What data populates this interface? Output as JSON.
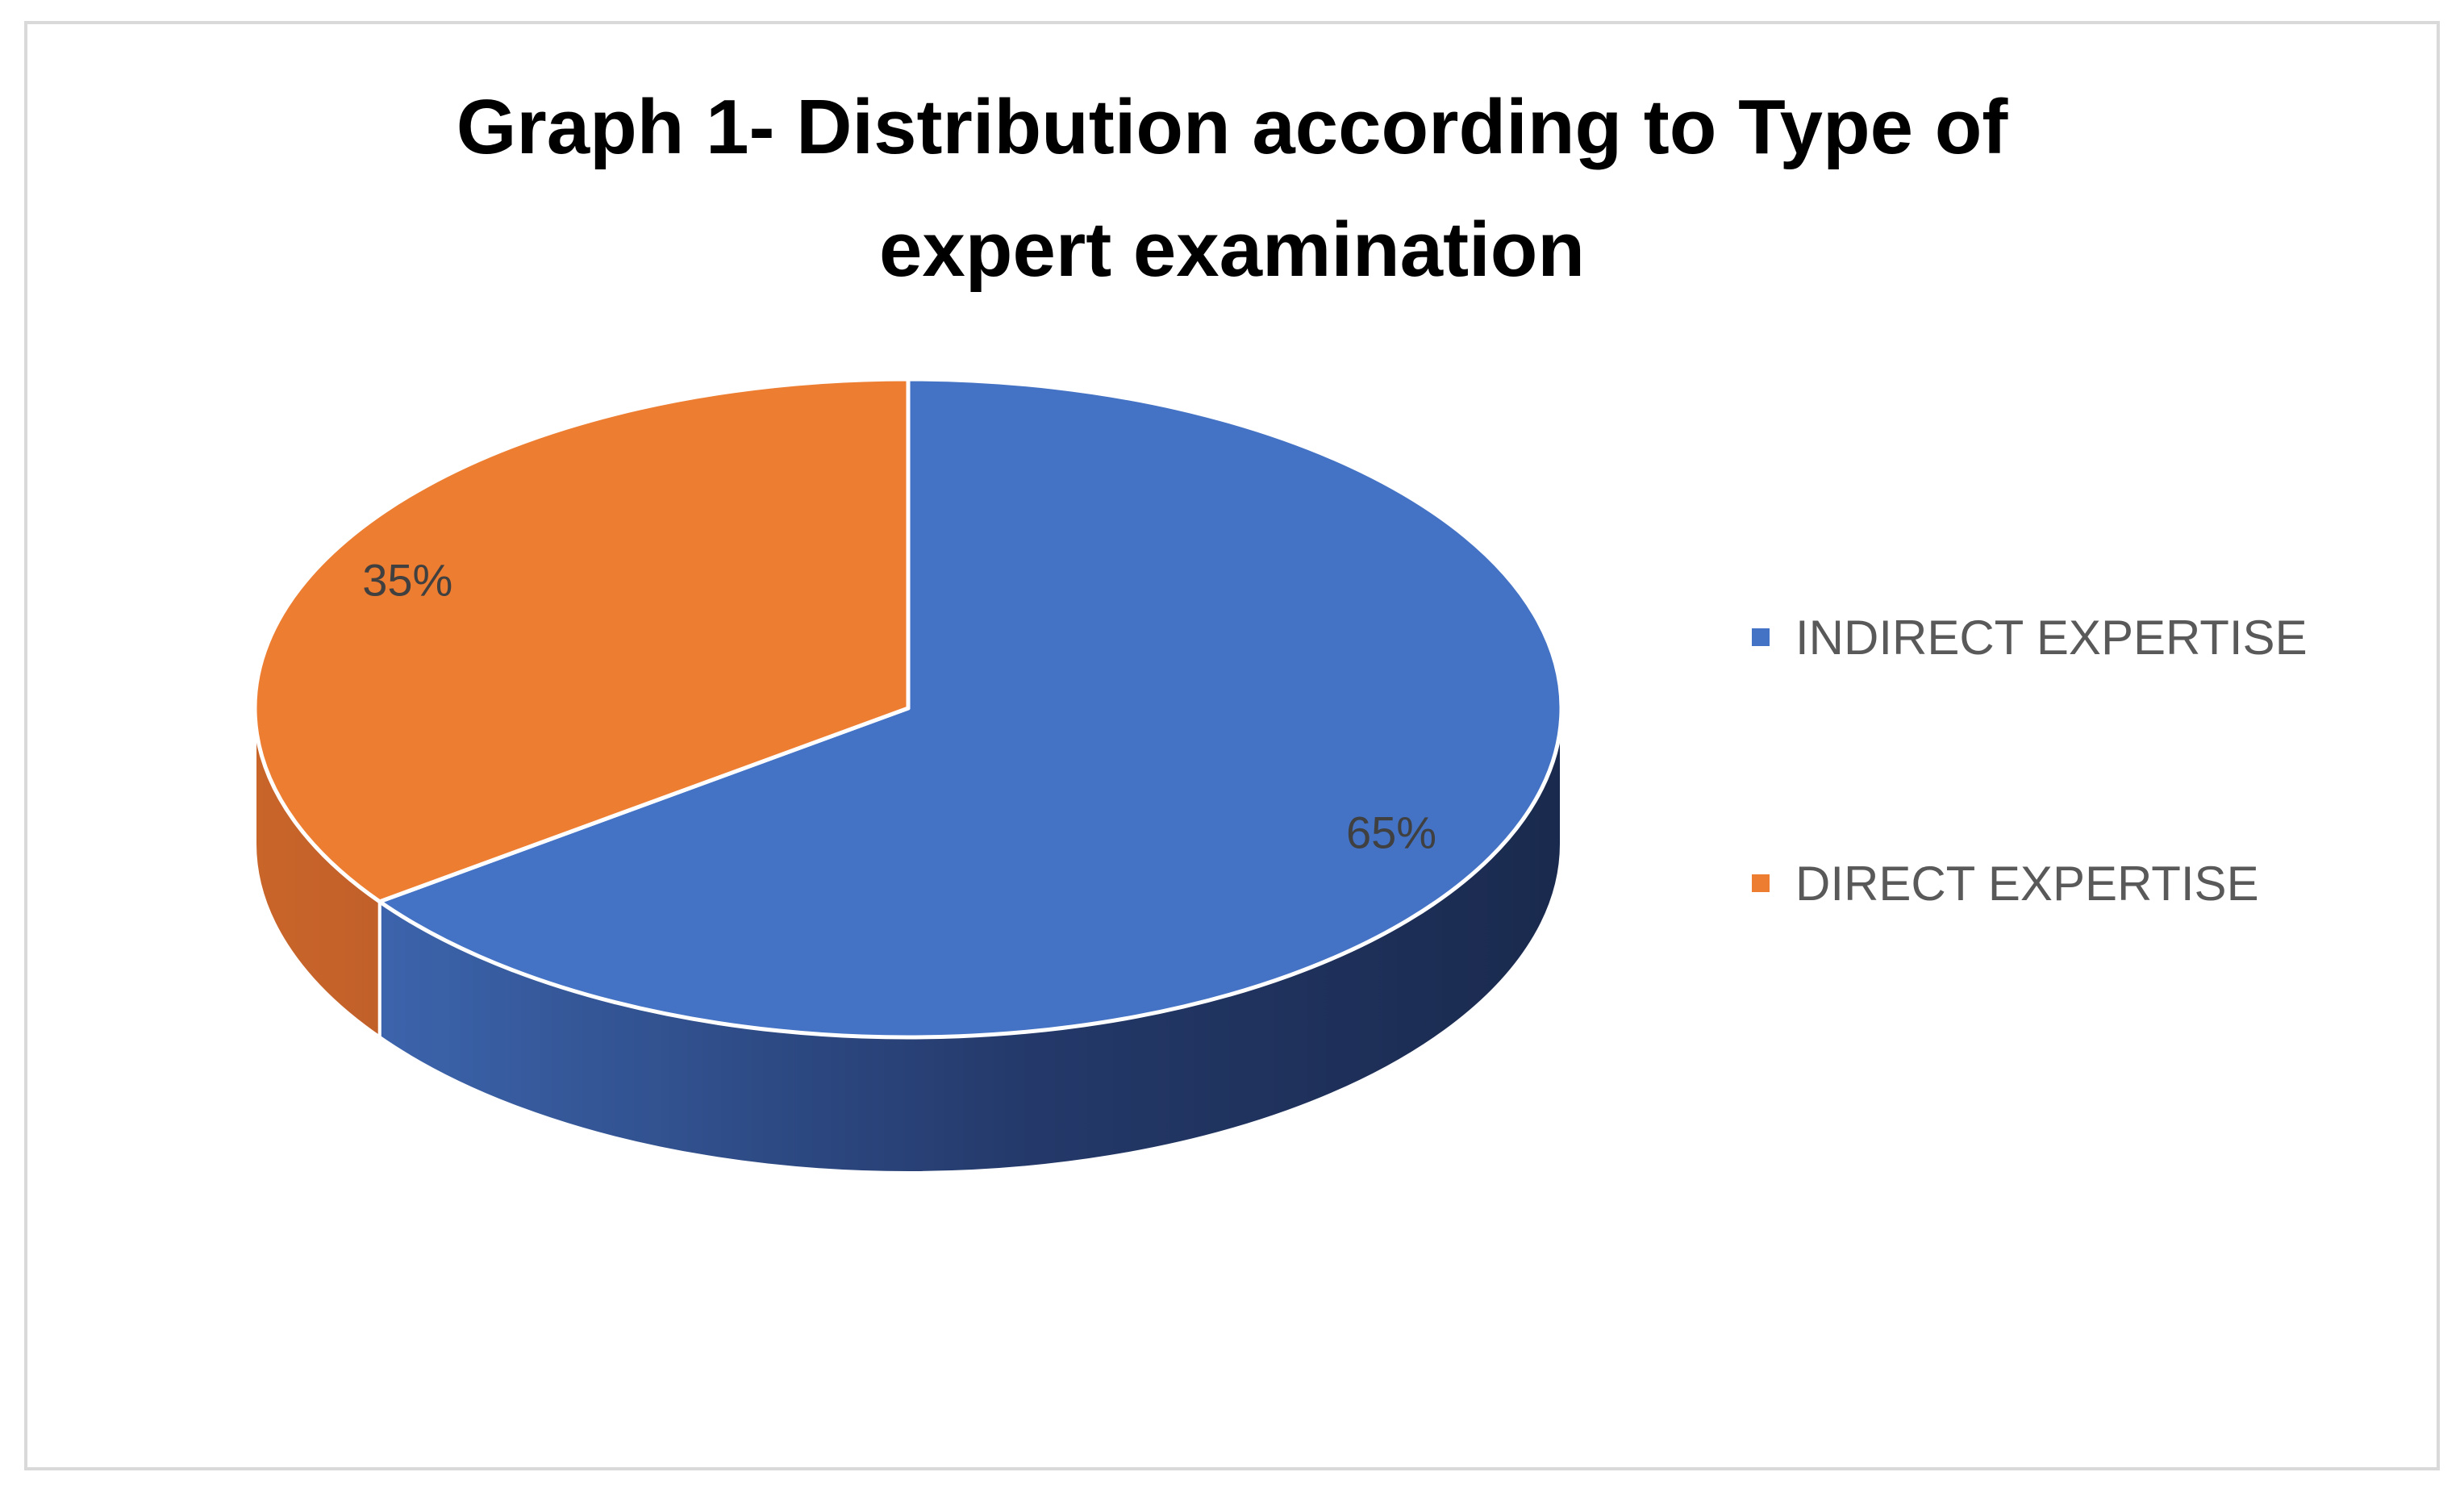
{
  "chart_data": {
    "type": "pie",
    "title": "Graph 1- Distribution according to Type of expert examination",
    "title_lines": [
      "Graph 1- Distribution according to Type of",
      "expert examination"
    ],
    "categories": [
      "INDIRECT EXPERTISE",
      "DIRECT EXPERTISE"
    ],
    "values": [
      65,
      35
    ],
    "data_labels": [
      "65%",
      "35%"
    ],
    "colors": [
      "#4472c4",
      "#ed7d31"
    ],
    "style": "3d",
    "legend_position": "right"
  }
}
